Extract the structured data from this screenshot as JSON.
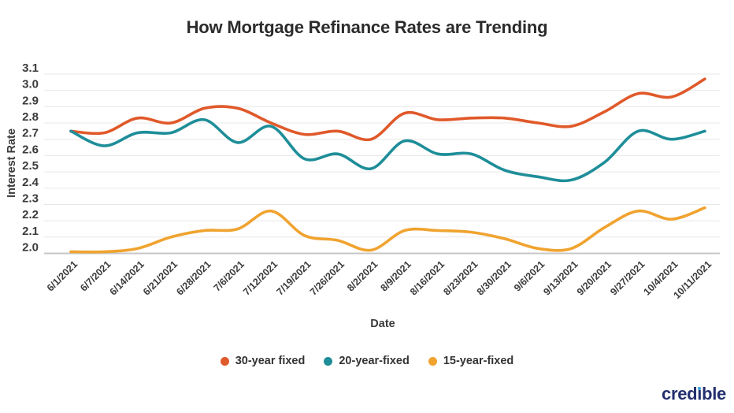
{
  "chart_data": {
    "type": "line",
    "title": "How Mortgage Refinance Rates are Trending",
    "xlabel": "Date",
    "ylabel": "Interest Rate",
    "ylim": [
      2.0,
      3.1
    ],
    "y_ticks": [
      2.0,
      2.1,
      2.2,
      2.3,
      2.4,
      2.5,
      2.6,
      2.7,
      2.8,
      2.9,
      3.0,
      3.1
    ],
    "grid": true,
    "legend_position": "bottom",
    "categories": [
      "6/1/2021",
      "6/7/2021",
      "6/14/2021",
      "6/21/2021",
      "6/28/2021",
      "7/6/2021",
      "7/12/2021",
      "7/19/2021",
      "7/26/2021",
      "8/2/2021",
      "8/9/2021",
      "8/16/2021",
      "8/23/2021",
      "8/30/2021",
      "9/6/2021",
      "9/13/2021",
      "9/20/2021",
      "9/27/2021",
      "10/4/2021",
      "10/11/2021"
    ],
    "series": [
      {
        "name": "30-year fixed",
        "color": "#e0592a",
        "values": [
          2.75,
          2.74,
          2.83,
          2.8,
          2.89,
          2.89,
          2.8,
          2.73,
          2.75,
          2.7,
          2.86,
          2.82,
          2.83,
          2.83,
          2.8,
          2.78,
          2.87,
          2.98,
          2.96,
          3.07
        ]
      },
      {
        "name": "20-year-fixed",
        "color": "#1e8e99",
        "values": [
          2.75,
          2.66,
          2.74,
          2.74,
          2.82,
          2.68,
          2.78,
          2.58,
          2.61,
          2.52,
          2.69,
          2.61,
          2.61,
          2.51,
          2.47,
          2.45,
          2.56,
          2.75,
          2.7,
          2.75
        ]
      },
      {
        "name": "15-year-fixed",
        "color": "#f0a32f",
        "values": [
          2.01,
          2.01,
          2.03,
          2.1,
          2.14,
          2.15,
          2.26,
          2.11,
          2.08,
          2.02,
          2.14,
          2.14,
          2.13,
          2.09,
          2.03,
          2.03,
          2.16,
          2.26,
          2.21,
          2.28
        ]
      }
    ]
  },
  "branding": {
    "logo_text": "credible",
    "logo_color": "#232f6e",
    "logo_dot_color": "#3fa9dc"
  }
}
